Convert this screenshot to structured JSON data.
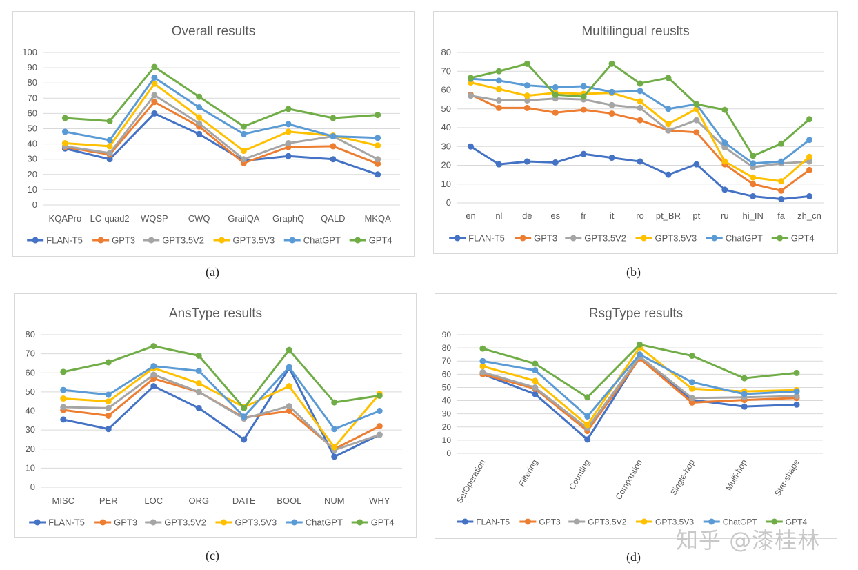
{
  "colors": {
    "FLAN-T5": "#4472C4",
    "GPT3": "#ED7D31",
    "GPT3.5V2": "#A5A5A5",
    "GPT3.5V3": "#FFC000",
    "ChatGPT": "#5B9BD5",
    "GPT4": "#70AD47"
  },
  "captions": [
    "(a)",
    "(b)",
    "(c)",
    "(d)"
  ],
  "watermark": "知乎 @漆桂林",
  "chart_data": [
    {
      "type": "line",
      "title": "Overall results",
      "ylim": [
        0,
        100
      ],
      "yticks": [
        0,
        10,
        20,
        30,
        40,
        50,
        60,
        70,
        80,
        90,
        100
      ],
      "categories": [
        "KQAPro",
        "LC-quad2",
        "WQSP",
        "CWQ",
        "GrailQA",
        "GraphQ",
        "QALD",
        "MKQA"
      ],
      "rotate_labels": false,
      "series": [
        {
          "name": "FLAN-T5",
          "values": [
            37,
            30,
            60,
            46.5,
            29,
            32,
            30,
            20
          ]
        },
        {
          "name": "GPT3",
          "values": [
            38,
            33,
            67.5,
            51.5,
            27.5,
            38,
            38.5,
            27
          ]
        },
        {
          "name": "GPT3.5V2",
          "values": [
            38.5,
            34,
            72,
            53.5,
            30,
            40.5,
            45,
            30
          ]
        },
        {
          "name": "GPT3.5V3",
          "values": [
            40.5,
            38.5,
            79.5,
            57.5,
            35.5,
            48,
            45.5,
            39
          ]
        },
        {
          "name": "ChatGPT",
          "values": [
            48,
            42.5,
            83.5,
            64,
            46.5,
            53,
            45,
            44
          ]
        },
        {
          "name": "GPT4",
          "values": [
            57,
            55,
            90.5,
            71,
            51.5,
            63,
            57,
            59
          ]
        }
      ]
    },
    {
      "type": "line",
      "title": "Multilingual reuslts",
      "ylim": [
        0,
        80
      ],
      "yticks": [
        0,
        10,
        20,
        30,
        40,
        50,
        60,
        70,
        80
      ],
      "categories": [
        "en",
        "nl",
        "de",
        "es",
        "fr",
        "it",
        "ro",
        "pt_BR",
        "pt",
        "ru",
        "hi_IN",
        "fa",
        "zh_cn"
      ],
      "rotate_labels": false,
      "series": [
        {
          "name": "FLAN-T5",
          "values": [
            30,
            20.5,
            22,
            21.5,
            26,
            24,
            22,
            15,
            20.5,
            7,
            3.5,
            2,
            3.5
          ]
        },
        {
          "name": "GPT3",
          "values": [
            57.5,
            50.5,
            50.5,
            48,
            49.5,
            47.5,
            44,
            38.5,
            37.5,
            20.5,
            10,
            6.5,
            17.5
          ]
        },
        {
          "name": "GPT3.5V2",
          "values": [
            57,
            54.5,
            54.5,
            55.5,
            55,
            52,
            50.5,
            38.5,
            44,
            29.5,
            19,
            21,
            22
          ]
        },
        {
          "name": "GPT3.5V3",
          "values": [
            64,
            60.5,
            57,
            58.5,
            58,
            58.5,
            54,
            42,
            50,
            22,
            13.5,
            11.5,
            24.5
          ]
        },
        {
          "name": "ChatGPT",
          "values": [
            66,
            65,
            62.5,
            61.5,
            62,
            59,
            59.5,
            50,
            52.5,
            32,
            21,
            22,
            33.5
          ]
        },
        {
          "name": "GPT4",
          "values": [
            66.5,
            70,
            74,
            57.5,
            56.5,
            74,
            63.5,
            66.5,
            52.5,
            49.5,
            25,
            31.5,
            44.5
          ]
        }
      ]
    },
    {
      "type": "line",
      "title": "AnsType results",
      "ylim": [
        0,
        80
      ],
      "yticks": [
        0,
        10,
        20,
        30,
        40,
        50,
        60,
        70,
        80
      ],
      "categories": [
        "MISC",
        "PER",
        "LOC",
        "ORG",
        "DATE",
        "BOOL",
        "NUM",
        "WHY"
      ],
      "rotate_labels": false,
      "series": [
        {
          "name": "FLAN-T5",
          "values": [
            35.5,
            30.5,
            53,
            41.5,
            25,
            62.5,
            16,
            27.5
          ]
        },
        {
          "name": "GPT3",
          "values": [
            40.5,
            37.5,
            57,
            50,
            36.5,
            40,
            20,
            32
          ]
        },
        {
          "name": "GPT3.5V2",
          "values": [
            42,
            41.5,
            59,
            50,
            36,
            42.5,
            19.5,
            27.5
          ]
        },
        {
          "name": "GPT3.5V3",
          "values": [
            46.5,
            45,
            62.5,
            54.5,
            42,
            53,
            21,
            49
          ]
        },
        {
          "name": "ChatGPT",
          "values": [
            51,
            48.5,
            63.5,
            61,
            37,
            63,
            30.5,
            40
          ]
        },
        {
          "name": "GPT4",
          "values": [
            60.5,
            65.5,
            74,
            69,
            41.5,
            72,
            44.5,
            48
          ]
        }
      ]
    },
    {
      "type": "line",
      "title": "RsgType results",
      "ylim": [
        0,
        90
      ],
      "yticks": [
        0,
        10,
        20,
        30,
        40,
        50,
        60,
        70,
        80,
        90
      ],
      "categories": [
        "SetOperation",
        "Filtering",
        "Counting",
        "Comparsion",
        "Single-hop",
        "Multi-hop",
        "Star-shape"
      ],
      "rotate_labels": true,
      "series": [
        {
          "name": "FLAN-T5",
          "values": [
            60,
            45,
            10.5,
            73,
            40.5,
            35.5,
            37
          ]
        },
        {
          "name": "GPT3",
          "values": [
            60,
            49,
            17,
            72,
            38.5,
            40.5,
            42
          ]
        },
        {
          "name": "GPT3.5V2",
          "values": [
            61.5,
            50,
            19,
            73.5,
            42,
            42.5,
            43.5
          ]
        },
        {
          "name": "GPT3.5V3",
          "values": [
            66,
            55,
            21.5,
            80.5,
            49,
            47,
            48
          ]
        },
        {
          "name": "ChatGPT",
          "values": [
            70,
            63,
            28,
            75,
            54,
            45,
            47
          ]
        },
        {
          "name": "GPT4",
          "values": [
            79.5,
            68,
            42.5,
            82.5,
            74,
            57,
            61
          ]
        }
      ]
    }
  ]
}
